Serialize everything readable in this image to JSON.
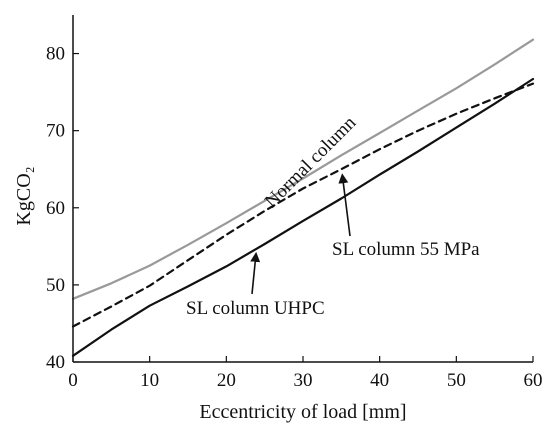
{
  "chart_data": {
    "type": "line",
    "xlabel": "Eccentricity of load [mm]",
    "ylabel": "KgCO₂",
    "xlim": [
      0,
      60
    ],
    "ylim": [
      40,
      85
    ],
    "xticks": [
      0,
      10,
      20,
      30,
      40,
      50,
      60
    ],
    "yticks": [
      40,
      50,
      60,
      70,
      80
    ],
    "grid": false,
    "colors": {
      "normal": "#999999",
      "sl55": "#111111",
      "uhpc": "#111111",
      "axis": "#111111"
    },
    "series": [
      {
        "name": "Normal column",
        "style": "solid",
        "color": "#999999",
        "x": [
          0,
          5,
          10,
          15,
          20,
          25,
          30,
          35,
          40,
          45,
          50,
          55,
          60
        ],
        "y": [
          48.2,
          50.2,
          52.5,
          55.2,
          58.0,
          60.9,
          63.8,
          66.8,
          69.7,
          72.6,
          75.5,
          78.6,
          81.8
        ]
      },
      {
        "name": "SL column 55 MPa",
        "style": "dashed",
        "color": "#111111",
        "x": [
          0,
          5,
          10,
          15,
          20,
          25,
          30,
          35,
          40,
          45,
          50,
          55,
          60
        ],
        "y": [
          44.6,
          47.2,
          49.9,
          53.2,
          56.5,
          59.6,
          62.5,
          65.0,
          67.6,
          70.0,
          72.2,
          74.2,
          76.1
        ]
      },
      {
        "name": "SL column UHPC",
        "style": "solid",
        "color": "#111111",
        "x": [
          0,
          5,
          10,
          15,
          20,
          25,
          30,
          35,
          40,
          45,
          50,
          55,
          60
        ],
        "y": [
          40.8,
          44.2,
          47.3,
          49.8,
          52.4,
          55.3,
          58.3,
          61.2,
          64.3,
          67.3,
          70.4,
          73.5,
          76.7
        ]
      }
    ],
    "annotations": [
      {
        "text": "Normal column",
        "series": 0
      },
      {
        "text": "SL column 55 MPa",
        "series": 1,
        "arrow_to": [
          35,
          65.0
        ]
      },
      {
        "text": "SL column UHPC",
        "series": 2,
        "arrow_to": [
          24,
          54.8
        ]
      }
    ]
  }
}
